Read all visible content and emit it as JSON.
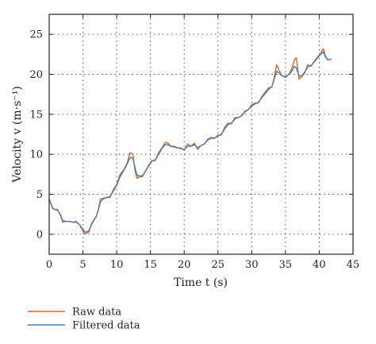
{
  "chart_data": {
    "type": "line",
    "title": "",
    "xlabel": "Time t (s)",
    "ylabel": "Velocity v (m·s⁻¹)",
    "xlim": [
      0,
      45
    ],
    "ylim": [
      -2.5,
      27.5
    ],
    "xticks": [
      0,
      5,
      10,
      15,
      20,
      25,
      30,
      35,
      40,
      45
    ],
    "yticks": [
      0,
      5,
      10,
      15,
      20,
      25
    ],
    "grid": "dotted",
    "legend_position": "bottom-left, below plot",
    "series": [
      {
        "name": "Raw data",
        "color": "#e0661d",
        "x": [
          0,
          0.5,
          0.8,
          1.2,
          1.7,
          2.0,
          2.5,
          3.0,
          3.5,
          4.0,
          4.5,
          5.0,
          5.3,
          5.6,
          5.9,
          6.2,
          6.6,
          7.0,
          7.3,
          7.6,
          8.0,
          8.5,
          9.0,
          9.5,
          10.0,
          10.5,
          11.0,
          11.5,
          12.0,
          12.4,
          12.7,
          13.0,
          13.4,
          13.8,
          14.2,
          14.7,
          15.2,
          15.7,
          16.2,
          16.7,
          17.2,
          17.6,
          18.0,
          18.5,
          19.0,
          19.5,
          20.0,
          20.5,
          21.0,
          21.5,
          22.0,
          22.5,
          23.0,
          23.5,
          24.0,
          24.5,
          25.0,
          25.5,
          26.0,
          26.5,
          27.0,
          27.5,
          28.0,
          28.5,
          29.0,
          29.5,
          30.0,
          30.5,
          31.0,
          31.5,
          32.0,
          32.5,
          33.0,
          33.3,
          33.7,
          34.1,
          34.5,
          35.0,
          35.5,
          35.9,
          36.3,
          36.6,
          37.0,
          37.4,
          37.8,
          38.3,
          38.8,
          39.3,
          39.8,
          40.2,
          40.6,
          40.9,
          41.3,
          41.8
        ],
        "values": [
          4.4,
          3.2,
          3.1,
          3.1,
          2.3,
          1.5,
          1.6,
          1.6,
          1.5,
          1.6,
          1.2,
          0.4,
          0.0,
          0.2,
          0.3,
          1.2,
          1.8,
          2.2,
          3.2,
          4.4,
          4.5,
          4.6,
          4.6,
          5.6,
          6.2,
          7.5,
          8.0,
          8.8,
          10.2,
          10.0,
          8.0,
          7.0,
          7.2,
          7.2,
          7.8,
          8.6,
          9.2,
          9.2,
          10.2,
          10.8,
          11.5,
          11.4,
          11.0,
          11.0,
          10.8,
          10.8,
          10.5,
          11.3,
          11.0,
          11.4,
          10.6,
          11.1,
          11.3,
          11.9,
          12.1,
          12.0,
          12.4,
          12.4,
          13.4,
          13.9,
          13.8,
          14.6,
          14.6,
          14.8,
          15.4,
          15.6,
          16.2,
          16.4,
          16.4,
          17.2,
          17.8,
          18.3,
          18.4,
          19.5,
          21.2,
          20.4,
          19.8,
          19.6,
          20.0,
          20.6,
          21.8,
          22.1,
          19.4,
          19.7,
          20.1,
          21.2,
          21.0,
          21.7,
          22.2,
          22.6,
          23.2,
          22.3,
          21.8,
          21.9
        ]
      },
      {
        "name": "Filtered data",
        "color": "#4a78c2",
        "x": [
          0,
          0.5,
          0.8,
          1.2,
          1.7,
          2.0,
          2.5,
          3.0,
          3.5,
          4.0,
          4.5,
          5.0,
          5.3,
          5.6,
          5.9,
          6.2,
          6.6,
          7.0,
          7.3,
          7.6,
          8.0,
          8.5,
          9.0,
          9.5,
          10.0,
          10.5,
          11.0,
          11.5,
          12.0,
          12.4,
          12.7,
          13.0,
          13.4,
          13.8,
          14.2,
          14.7,
          15.2,
          15.7,
          16.2,
          16.7,
          17.2,
          17.6,
          18.0,
          18.5,
          19.0,
          19.5,
          20.0,
          20.5,
          21.0,
          21.5,
          22.0,
          22.5,
          23.0,
          23.5,
          24.0,
          24.5,
          25.0,
          25.5,
          26.0,
          26.5,
          27.0,
          27.5,
          28.0,
          28.5,
          29.0,
          29.5,
          30.0,
          30.5,
          31.0,
          31.5,
          32.0,
          32.5,
          33.0,
          33.3,
          33.7,
          34.1,
          34.5,
          35.0,
          35.5,
          35.9,
          36.3,
          36.6,
          37.0,
          37.4,
          37.8,
          38.3,
          38.8,
          39.3,
          39.8,
          40.2,
          40.6,
          40.9,
          41.3,
          41.8
        ],
        "values": [
          4.4,
          3.3,
          3.1,
          3.0,
          2.4,
          1.7,
          1.6,
          1.6,
          1.5,
          1.5,
          1.2,
          0.6,
          0.3,
          0.3,
          0.5,
          1.1,
          1.7,
          2.3,
          3.1,
          4.1,
          4.4,
          4.6,
          4.7,
          5.4,
          6.1,
          7.2,
          7.9,
          8.7,
          9.6,
          9.5,
          8.4,
          7.4,
          7.3,
          7.3,
          7.8,
          8.5,
          9.1,
          9.3,
          10.0,
          10.7,
          11.2,
          11.2,
          11.0,
          10.9,
          10.8,
          10.7,
          10.6,
          11.0,
          11.0,
          11.2,
          10.8,
          11.1,
          11.3,
          11.8,
          12.0,
          12.0,
          12.3,
          12.5,
          13.2,
          13.7,
          13.9,
          14.4,
          14.6,
          14.8,
          15.3,
          15.6,
          16.0,
          16.3,
          16.5,
          17.1,
          17.6,
          18.1,
          18.5,
          19.3,
          20.4,
          20.1,
          19.8,
          19.7,
          20.0,
          20.3,
          21.0,
          20.8,
          19.8,
          19.8,
          20.2,
          20.9,
          21.1,
          21.6,
          22.1,
          22.5,
          22.8,
          22.2,
          21.8,
          21.9
        ]
      }
    ]
  }
}
